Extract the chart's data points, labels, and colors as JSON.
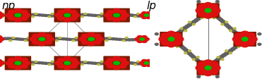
{
  "background_color": "#ffffff",
  "label_np": "np",
  "label_lp": "lp",
  "label_fontsize": 11,
  "label_color": "#000000",
  "atom_colors": {
    "C": "#606060",
    "O": "#dd1111",
    "metal": "#00bb00",
    "H": "#b8b840",
    "bond": "#555555",
    "metal_bg": "#7a1a00"
  },
  "figsize": [
    3.78,
    1.13
  ],
  "dpi": 100
}
